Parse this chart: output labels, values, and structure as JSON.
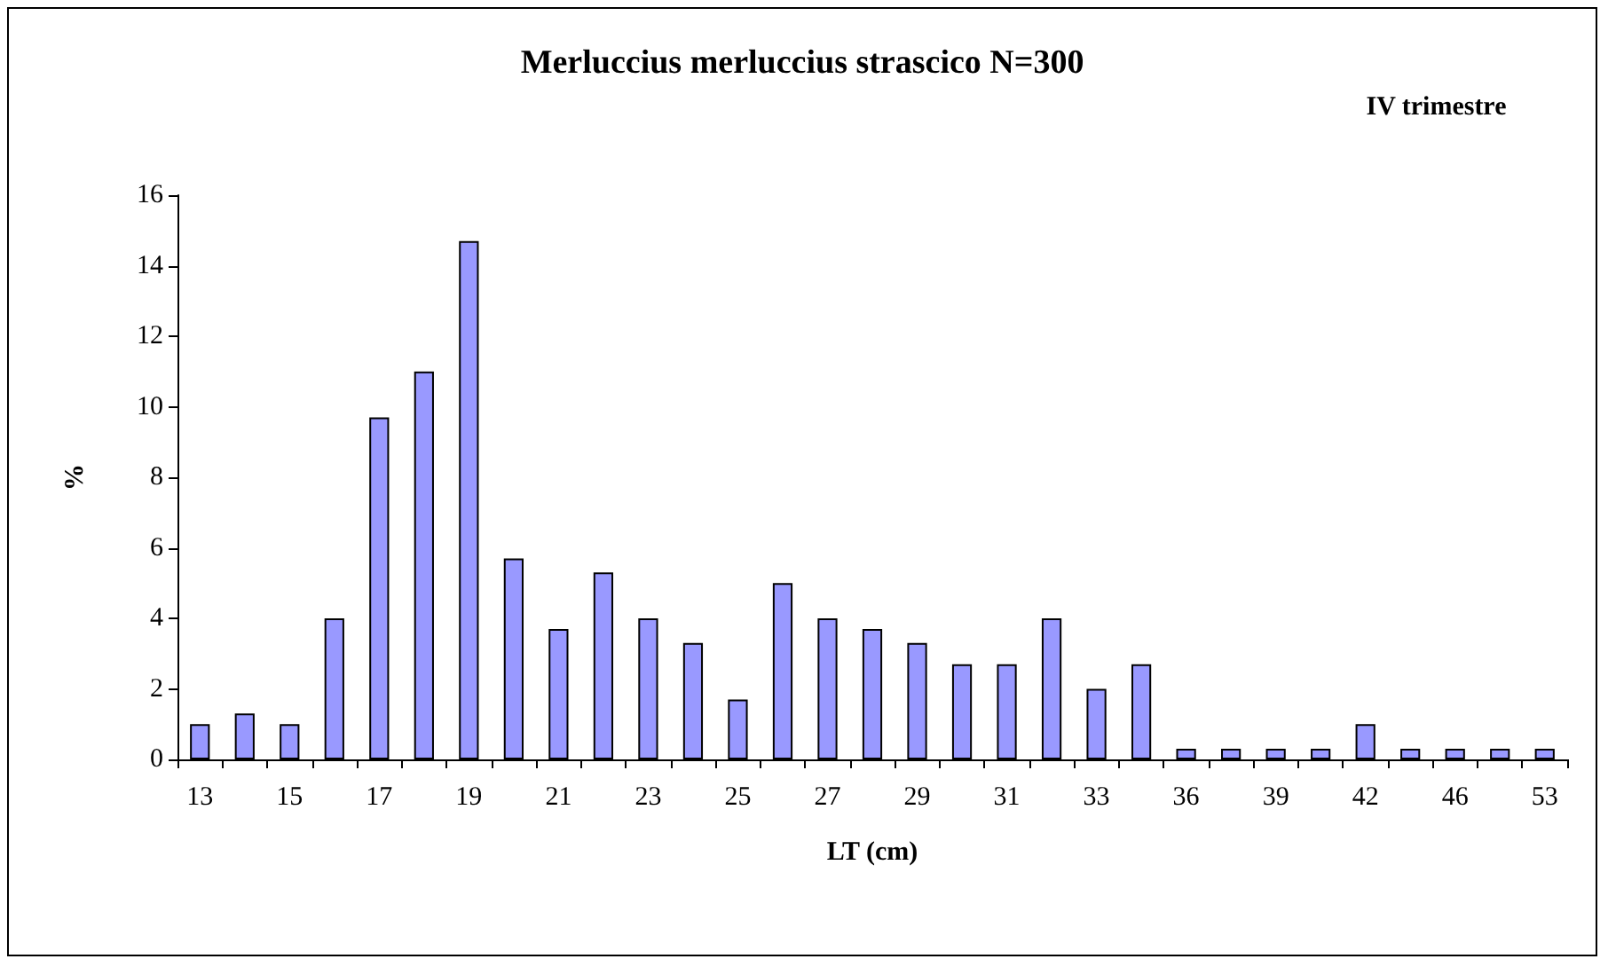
{
  "chart_data": {
    "type": "bar",
    "title": "Merluccius merluccius strascico N=300",
    "xlabel": "LT (cm)",
    "ylabel": "%",
    "annotations": [
      "IV trimestre"
    ],
    "categories": [
      "13",
      null,
      "15",
      null,
      "17",
      null,
      "19",
      null,
      "21",
      null,
      "23",
      null,
      "25",
      null,
      "27",
      null,
      "29",
      null,
      "31",
      null,
      "33",
      null,
      "36",
      null,
      "39",
      null,
      "42",
      null,
      "46",
      null,
      "53"
    ],
    "values": [
      1,
      1.3,
      1,
      4,
      9.7,
      11,
      14.7,
      5.7,
      3.7,
      5.3,
      4,
      3.3,
      1.7,
      5,
      4,
      3.7,
      3.3,
      2.7,
      2.7,
      4,
      2,
      2.7,
      0.3,
      0.3,
      0.3,
      0.3,
      1,
      0.3,
      0.3,
      0.3,
      0.3
    ],
    "color": "#9999ff",
    "ylim": [
      0,
      16
    ],
    "yticks": [
      0,
      2,
      4,
      6,
      8,
      10,
      12,
      14,
      16
    ],
    "grid": false
  }
}
